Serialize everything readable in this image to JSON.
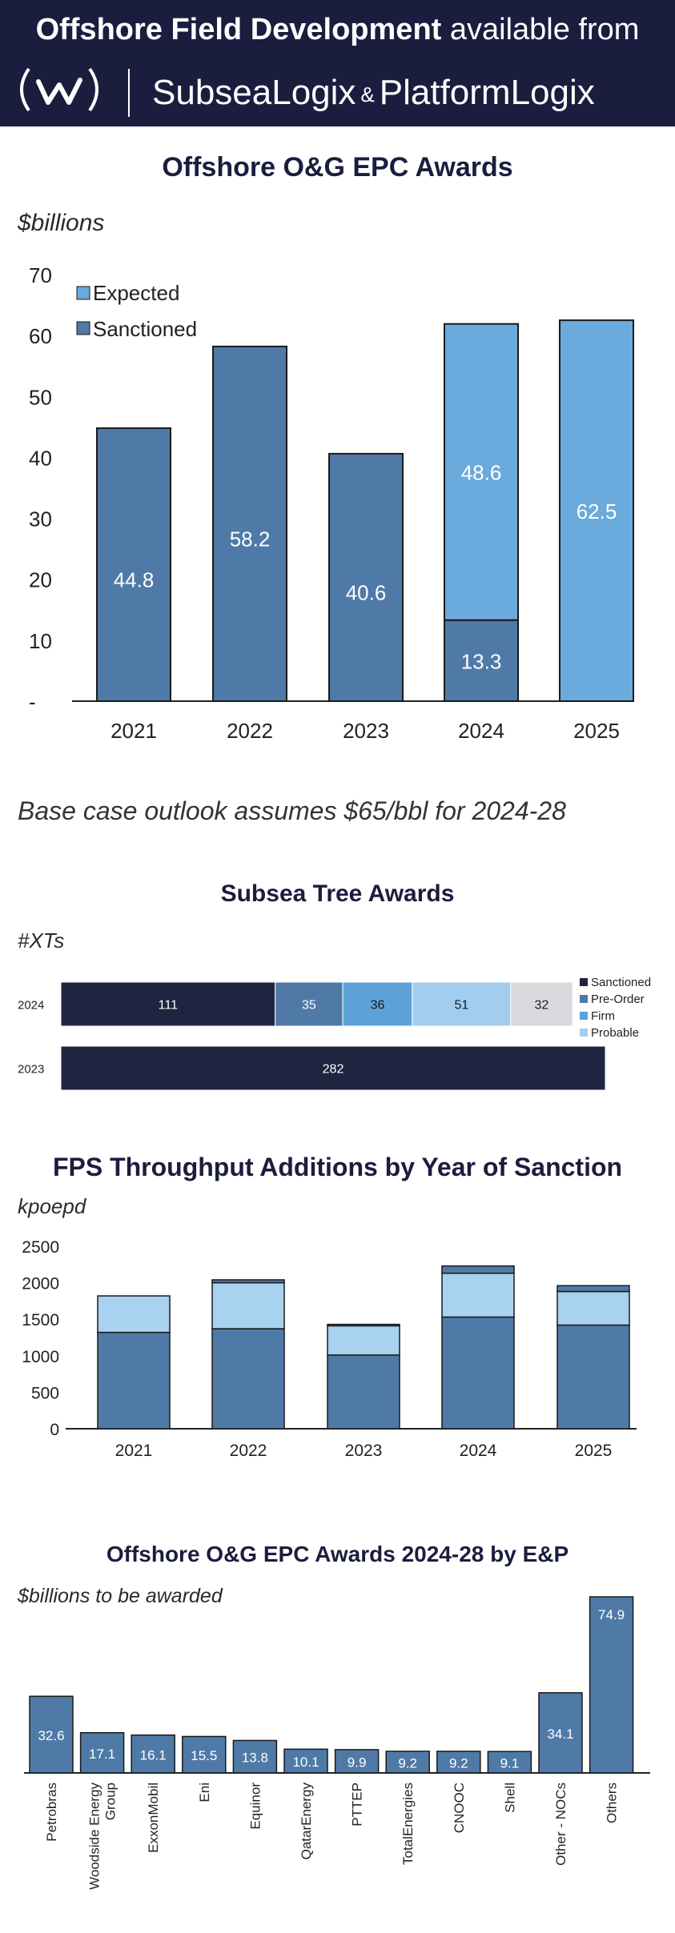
{
  "header": {
    "line1_bold": "Offshore Field Development",
    "line1_rest": " available from",
    "brand_a": "SubseaLogix",
    "amp": "&",
    "brand_b": "PlatformLogix",
    "logo_icon": "w-circle-logo"
  },
  "colors": {
    "header_bg": "#1b1d3f",
    "sanctioned": "#4f7aa7",
    "expected": "#6aaadc",
    "navy": "#1f2440",
    "preorder": "#4f7aa7",
    "firm": "#5ca2d8",
    "probable": "#a3cdee",
    "other": "#d9d9de",
    "fps_light": "#a9d1f0"
  },
  "note": "Base case outlook assumes $65/bbl for 2024-28",
  "chart_data": [
    {
      "type": "bar",
      "title": "Offshore O&G EPC Awards",
      "unit": "$billions",
      "categories": [
        "2021",
        "2022",
        "2023",
        "2024",
        "2025"
      ],
      "series": [
        {
          "name": "Sanctioned",
          "values": [
            44.8,
            58.2,
            40.6,
            13.3,
            0
          ]
        },
        {
          "name": "Expected",
          "values": [
            0,
            0,
            0,
            48.6,
            62.5
          ]
        }
      ],
      "data_labels": [
        "44.8",
        "58.2",
        "40.6",
        "13.3",
        "48.6",
        "62.5"
      ],
      "yticks": [
        "-",
        "10",
        "20",
        "30",
        "40",
        "50",
        "60",
        "70"
      ],
      "ylim": [
        0,
        70
      ],
      "legend": [
        "Expected",
        "Sanctioned"
      ],
      "legend_position": "top-left"
    },
    {
      "type": "bar",
      "orientation": "horizontal",
      "title": "Subsea Tree Awards",
      "unit": "#XTs",
      "categories": [
        "2024",
        "2023"
      ],
      "series": [
        {
          "name": "Sanctioned",
          "values": [
            111,
            282
          ]
        },
        {
          "name": "Pre-Order",
          "values": [
            35,
            0
          ]
        },
        {
          "name": "Firm",
          "values": [
            36,
            0
          ]
        },
        {
          "name": "Probable",
          "values": [
            51,
            0
          ]
        },
        {
          "values": [
            32,
            0
          ]
        }
      ],
      "legend": [
        "Sanctioned",
        "Pre-Order",
        "Firm",
        "Probable"
      ],
      "legend_position": "right"
    },
    {
      "type": "bar",
      "title": "FPS Throughput Additions by Year of Sanction",
      "unit": "kpoepd",
      "categories": [
        "2021",
        "2022",
        "2023",
        "2024",
        "2025"
      ],
      "series": [
        {
          "values": [
            1320,
            1370,
            1010,
            1530,
            1420
          ]
        },
        {
          "values": [
            500,
            630,
            400,
            600,
            460
          ]
        },
        {
          "values": [
            0,
            40,
            20,
            100,
            80
          ]
        }
      ],
      "yticks": [
        "0",
        "500",
        "1000",
        "1500",
        "2000",
        "2500"
      ],
      "ylim": [
        0,
        2500
      ]
    },
    {
      "type": "bar",
      "title": "Offshore O&G EPC Awards 2024-28 by E&P",
      "unit": "$billions to be awarded",
      "categories": [
        "Petrobras",
        "Woodside Energy Group",
        "ExxonMobil",
        "Eni",
        "Equinor",
        "QatarEnergy",
        "PTTEP",
        "TotalEnergies",
        "CNOOC",
        "Shell",
        "Other - NOCs",
        "Others"
      ],
      "values": [
        32.6,
        17.1,
        16.1,
        15.5,
        13.8,
        10.1,
        9.9,
        9.2,
        9.2,
        9.1,
        34.1,
        74.9
      ],
      "labels": [
        "32.6",
        "17.1",
        "16.1",
        "15.5",
        "13.8",
        "10.1",
        "9.9",
        "9.2",
        "9.2",
        "9.1",
        "34.1",
        "74.9"
      ]
    }
  ]
}
